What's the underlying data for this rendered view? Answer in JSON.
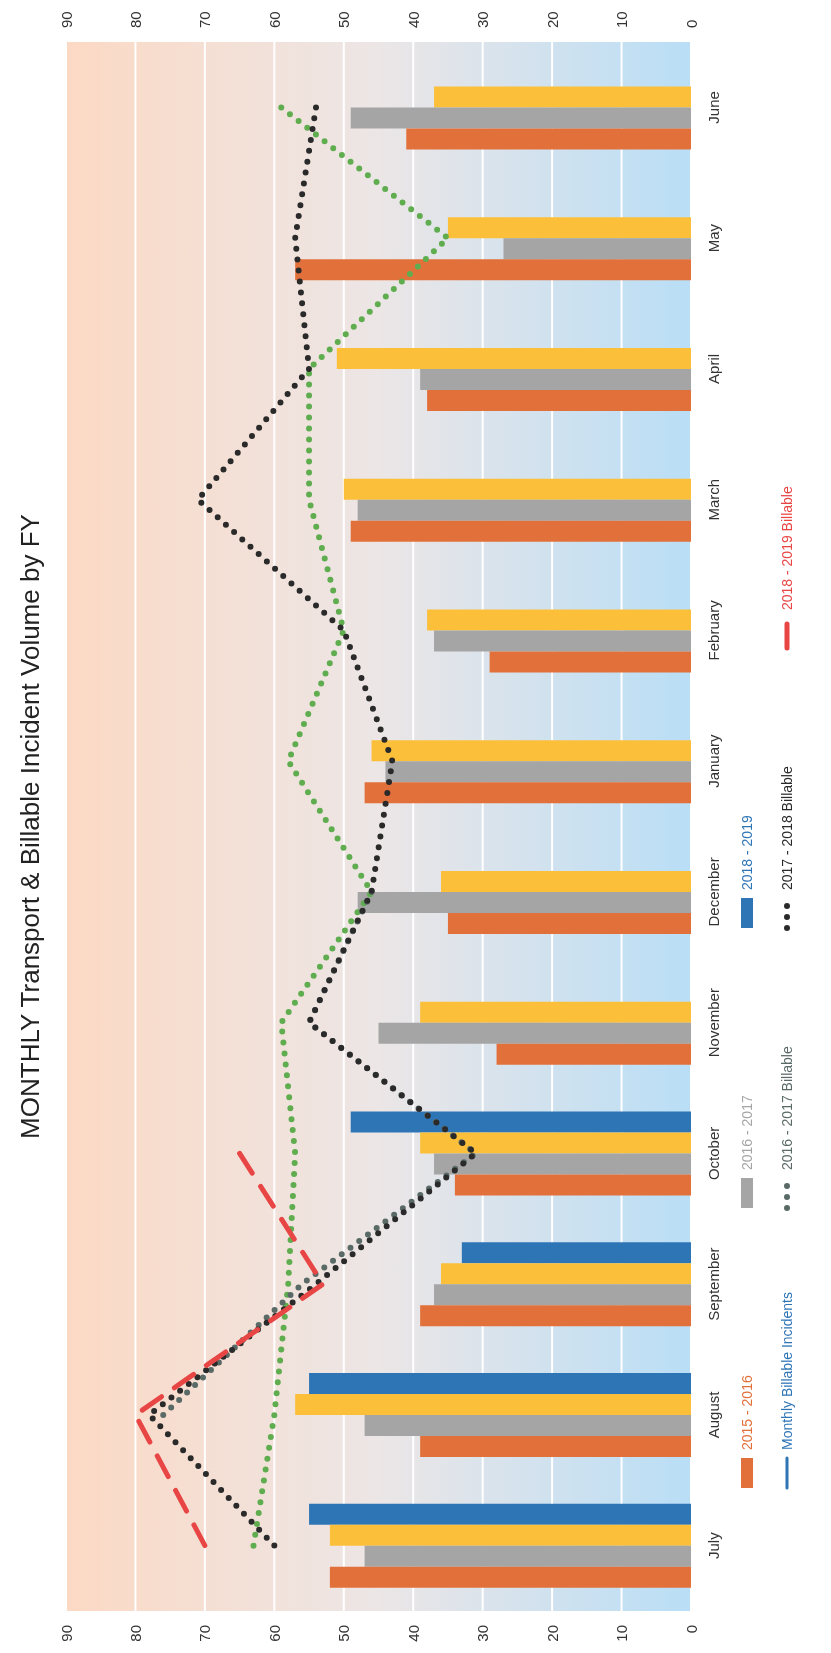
{
  "chart_data": {
    "type": "bar",
    "orientation": "horizontal",
    "title": "MONTHLY Transport & Billable Incident Volume by FY",
    "categories": [
      "June",
      "May",
      "April",
      "March",
      "February",
      "January",
      "December",
      "November",
      "October",
      "September",
      "August",
      "July"
    ],
    "xlim": [
      90,
      0
    ],
    "xticks": [
      90,
      80,
      70,
      60,
      50,
      40,
      30,
      20,
      10,
      0
    ],
    "x2lim": [
      90,
      0
    ],
    "x2ticks": [
      90,
      80,
      70,
      60,
      50,
      40,
      30,
      20,
      10,
      0
    ],
    "grid": "x",
    "legend": "right",
    "series": [
      {
        "name": "2015 - 2016",
        "color": "#e2703a",
        "values": [
          41,
          57,
          38,
          49,
          29,
          47,
          35,
          28,
          34,
          39,
          39,
          52
        ]
      },
      {
        "name": "2016 - 2017",
        "color": "#a5a5a5",
        "values": [
          49,
          27,
          39,
          48,
          37,
          44,
          48,
          45,
          37,
          37,
          47,
          47
        ]
      },
      {
        "color": "#fbbf3a",
        "values": [
          37,
          35,
          51,
          50,
          38,
          46,
          36,
          39,
          39,
          36,
          57,
          52
        ]
      },
      {
        "name": "2018 - 2019",
        "color": "#2e75b6",
        "values": [
          null,
          null,
          null,
          null,
          null,
          null,
          null,
          null,
          49,
          33,
          55,
          55
        ]
      },
      {
        "type": "line",
        "line_style": "dotted",
        "color": "#5fad4f",
        "values": [
          59,
          35,
          55,
          55,
          50,
          58,
          46,
          59,
          57,
          58,
          60,
          63
        ]
      },
      {
        "name": "Monthly Billable Incidents",
        "type": "line",
        "line_style": "solid",
        "color": "#2e75b6",
        "values": [
          null,
          null,
          null,
          null,
          null,
          null,
          null,
          null,
          null,
          null,
          null,
          null
        ]
      },
      {
        "name": "2016 - 2017 Billable",
        "type": "line",
        "line_style": "dotted",
        "color": "#5a6a66",
        "values": [
          null,
          null,
          null,
          null,
          null,
          null,
          46,
          55,
          31,
          56,
          76,
          null
        ]
      },
      {
        "name": "2017 - 2018 Billable",
        "type": "line",
        "line_style": "dotted",
        "color": "#2a2a2a",
        "values": [
          54,
          57,
          55,
          71,
          50,
          43,
          46,
          55,
          31,
          54,
          78,
          60
        ]
      },
      {
        "name": "2018 - 2019 Billable",
        "type": "line",
        "line_style": "dashed",
        "color": "#e84545",
        "values": [
          null,
          null,
          null,
          null,
          null,
          null,
          null,
          null,
          65,
          53,
          80,
          70
        ]
      }
    ]
  }
}
